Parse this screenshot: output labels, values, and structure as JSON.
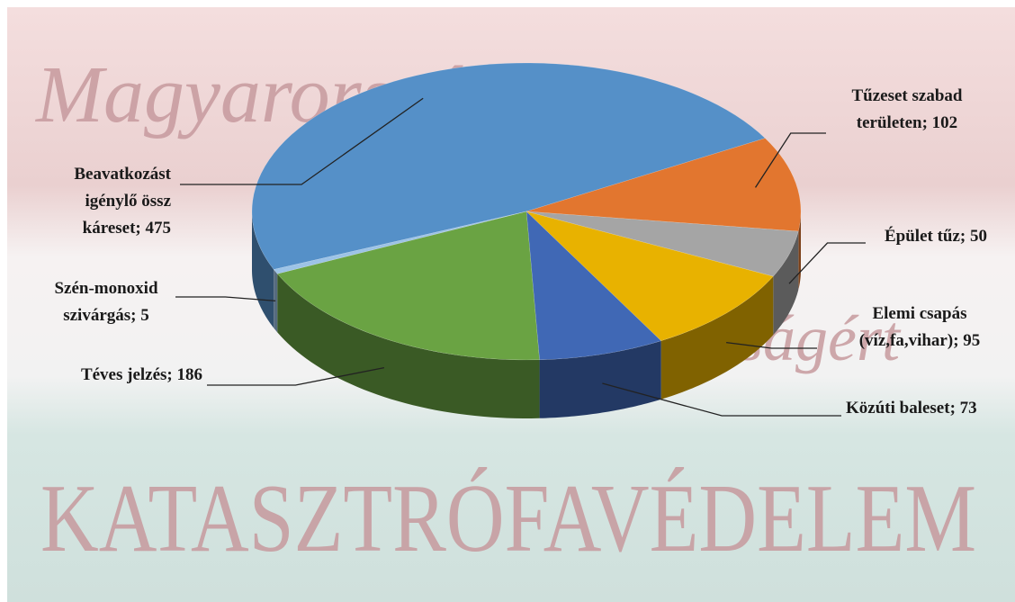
{
  "background_text": {
    "top": "Magyarország",
    "middle": "ságért",
    "bottom": "KATASZTRÓFAVÉDELEM"
  },
  "chart_data": {
    "type": "pie3d",
    "values": [
      475,
      102,
      50,
      95,
      73,
      186,
      5
    ],
    "value_labels": [
      [
        "Beavatkozást",
        "igénylő össz",
        "káreset; 475"
      ],
      [
        "Tűzeset szabad",
        "területen; 102"
      ],
      [
        "Épület tűz; 50"
      ],
      [
        "Elemi csapás",
        "(víz,fa,vihar); 95"
      ],
      [
        "Közúti baleset; 73"
      ],
      [
        "Téves jelzés; 186"
      ],
      [
        "Szén-monoxid",
        "szivárgás; 5"
      ]
    ],
    "colors": [
      "#5590c8",
      "#e2762f",
      "#a5a5a5",
      "#e8b200",
      "#4068b5",
      "#6aa343",
      "#9dc3e6"
    ]
  }
}
